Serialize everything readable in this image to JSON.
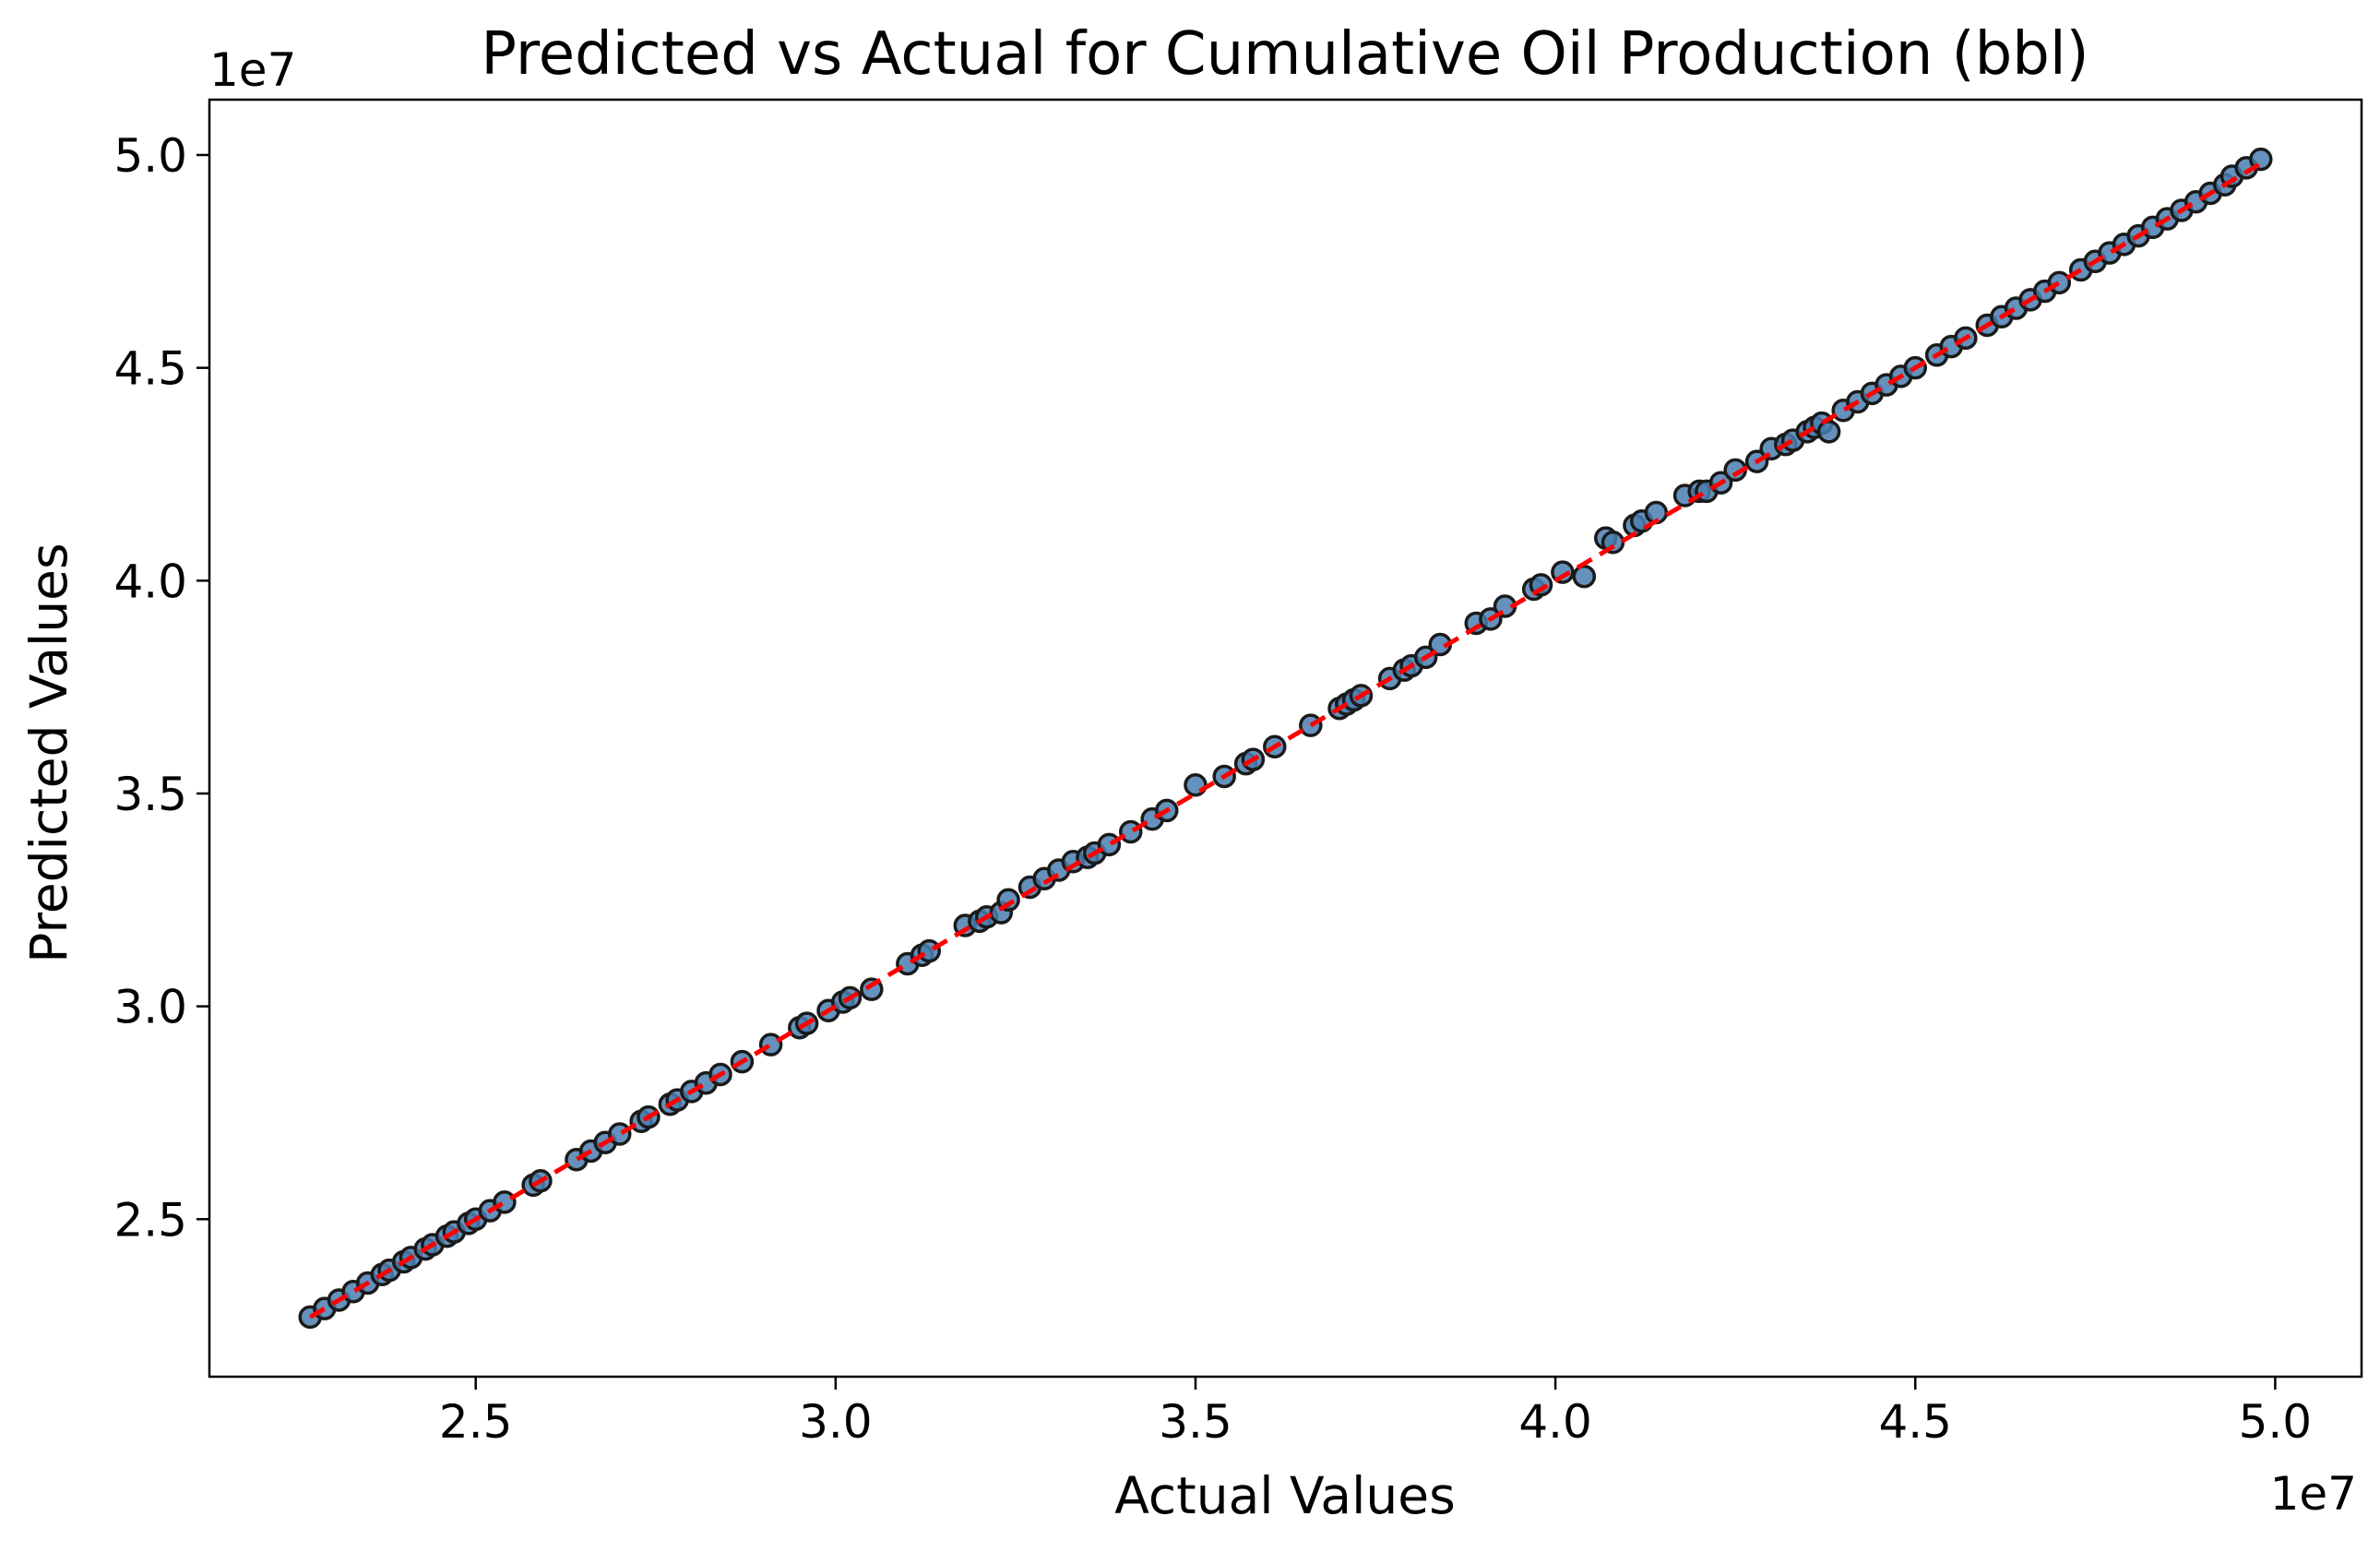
{
  "chart_data": {
    "type": "scatter",
    "title": "Predicted vs Actual for Cumulative Oil Production (bbl)",
    "xlabel": "Actual Values",
    "ylabel": "Predicted Values",
    "x_offset_text": "1e7",
    "y_offset_text": "1e7",
    "xlim": [
      2.13,
      5.12
    ],
    "ylim": [
      2.13,
      5.13
    ],
    "x_ticks": [
      2.5,
      3.0,
      3.5,
      4.0,
      4.5,
      5.0
    ],
    "x_tick_labels": [
      "2.5",
      "3.0",
      "3.5",
      "4.0",
      "4.5",
      "5.0"
    ],
    "y_ticks": [
      2.5,
      3.0,
      3.5,
      4.0,
      4.5,
      5.0
    ],
    "y_tick_labels": [
      "2.5",
      "3.0",
      "3.5",
      "4.0",
      "4.5",
      "5.0"
    ],
    "grid": false,
    "reference_line": {
      "style": "dashed",
      "color": "#ff0000",
      "from": [
        2.27,
        2.27
      ],
      "to": [
        4.98,
        4.98
      ]
    },
    "marker_color": "#4a7fb0",
    "marker_edge_color": "#1a1a1a",
    "series": [
      {
        "x": [
          2.27,
          2.29,
          2.31,
          2.33,
          2.35,
          2.37,
          2.38,
          2.4,
          2.41,
          2.43,
          2.44,
          2.46,
          2.47,
          2.49,
          2.5,
          2.52,
          2.54,
          2.58,
          2.59,
          2.64,
          2.66,
          2.68,
          2.7,
          2.73,
          2.74,
          2.77,
          2.78,
          2.8,
          2.82,
          2.84,
          2.87,
          2.91,
          2.95,
          2.96,
          2.99,
          3.01,
          3.02,
          3.05,
          3.1,
          3.12,
          3.13,
          3.18,
          3.2,
          3.21,
          3.23,
          3.24,
          3.27,
          3.29,
          3.31,
          3.33,
          3.35,
          3.36,
          3.38,
          3.41,
          3.44,
          3.46,
          3.5,
          3.54,
          3.57,
          3.58,
          3.61,
          3.66,
          3.7,
          3.71,
          3.72,
          3.73,
          3.77,
          3.79,
          3.8,
          3.82,
          3.84,
          3.89,
          3.91,
          3.93,
          3.97,
          3.98,
          4.01,
          4.04,
          4.07,
          4.08,
          4.11,
          4.12,
          4.14,
          4.18,
          4.2,
          4.21,
          4.23,
          4.25,
          4.28,
          4.3,
          4.32,
          4.33,
          4.35,
          4.36,
          4.37,
          4.38,
          4.4,
          4.42,
          4.44,
          4.46,
          4.48,
          4.5,
          4.53,
          4.55,
          4.57,
          4.6,
          4.62,
          4.64,
          4.66,
          4.68,
          4.7,
          4.73,
          4.75,
          4.77,
          4.79,
          4.81,
          4.83,
          4.85,
          4.87,
          4.89,
          4.91,
          4.93,
          4.94,
          4.96,
          4.98
        ],
        "y": [
          2.27,
          2.29,
          2.31,
          2.33,
          2.35,
          2.37,
          2.38,
          2.4,
          2.41,
          2.43,
          2.44,
          2.46,
          2.47,
          2.49,
          2.5,
          2.52,
          2.54,
          2.58,
          2.59,
          2.64,
          2.66,
          2.68,
          2.7,
          2.73,
          2.74,
          2.77,
          2.78,
          2.8,
          2.82,
          2.84,
          2.87,
          2.91,
          2.95,
          2.96,
          2.99,
          3.01,
          3.02,
          3.04,
          3.1,
          3.12,
          3.13,
          3.19,
          3.2,
          3.21,
          3.22,
          3.25,
          3.28,
          3.3,
          3.32,
          3.34,
          3.35,
          3.36,
          3.38,
          3.41,
          3.44,
          3.46,
          3.52,
          3.54,
          3.57,
          3.58,
          3.61,
          3.66,
          3.7,
          3.71,
          3.72,
          3.73,
          3.77,
          3.79,
          3.8,
          3.82,
          3.85,
          3.9,
          3.91,
          3.94,
          3.98,
          3.99,
          4.02,
          4.01,
          4.1,
          4.09,
          4.13,
          4.14,
          4.16,
          4.2,
          4.21,
          4.21,
          4.23,
          4.26,
          4.28,
          4.31,
          4.32,
          4.33,
          4.35,
          4.36,
          4.37,
          4.35,
          4.4,
          4.42,
          4.44,
          4.46,
          4.48,
          4.5,
          4.53,
          4.55,
          4.57,
          4.6,
          4.62,
          4.64,
          4.66,
          4.68,
          4.7,
          4.73,
          4.75,
          4.77,
          4.79,
          4.81,
          4.83,
          4.85,
          4.87,
          4.89,
          4.91,
          4.93,
          4.95,
          4.97,
          4.99
        ]
      }
    ]
  }
}
